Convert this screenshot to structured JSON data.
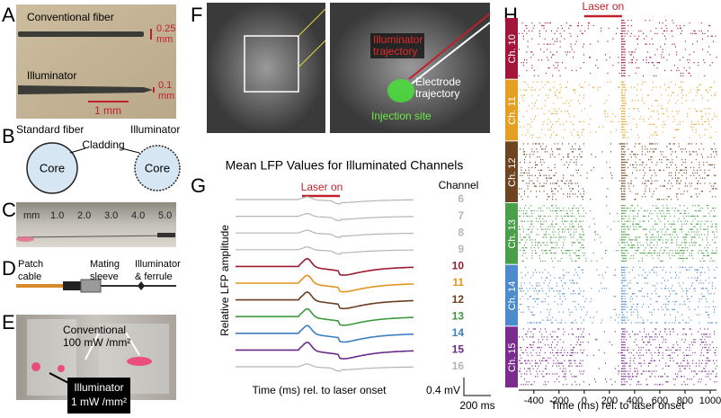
{
  "panel_a": {
    "label": "A",
    "fiber1": "Conventional fiber",
    "scale1": [
      "0.25",
      "mm"
    ],
    "fiber2": "Illuminator",
    "scale2": [
      "0.1",
      "mm"
    ],
    "scalebar": "1 mm"
  },
  "panel_b": {
    "label": "B",
    "left_title": "Standard fiber",
    "right_title": "Illuminator",
    "cladding": "Cladding",
    "core_left": "Core",
    "core_right": "Core"
  },
  "panel_c": {
    "label": "C",
    "ruler": [
      "mm",
      "1.0",
      "2.0",
      "3.0",
      "4.0",
      "5.0"
    ]
  },
  "panel_d": {
    "label": "D",
    "parts": [
      [
        "Patch",
        "cable"
      ],
      [
        "Mating",
        "sleeve"
      ],
      [
        "Illuminator",
        "& ferrule"
      ]
    ]
  },
  "panel_e": {
    "label": "E",
    "conventional": [
      "Conventional",
      "100 mW /mm²"
    ],
    "illuminator": [
      "Illuminator",
      "1 mW /mm²"
    ]
  },
  "panel_f": {
    "label": "F",
    "illuminator_trajectory": [
      "Illuminator",
      "trajectory"
    ],
    "electrode_trajectory": [
      "Electrode",
      "trajectory"
    ],
    "injection_site": "Injection site"
  },
  "panel_g": {
    "label": "G",
    "title": "Mean LFP Values for Illuminated Channels",
    "laser": "Laser on",
    "channel_header": "Channel",
    "channels": [
      {
        "name": "6",
        "color": "#b5b5b5"
      },
      {
        "name": "7",
        "color": "#b5b5b5"
      },
      {
        "name": "8",
        "color": "#b5b5b5"
      },
      {
        "name": "9",
        "color": "#b5b5b5"
      },
      {
        "name": "10",
        "color": "#9b1b30"
      },
      {
        "name": "11",
        "color": "#e0961c"
      },
      {
        "name": "12",
        "color": "#6b3e1f"
      },
      {
        "name": "13",
        "color": "#3d9a3d"
      },
      {
        "name": "14",
        "color": "#3a7fc0"
      },
      {
        "name": "15",
        "color": "#6a2a8a"
      },
      {
        "name": "16",
        "color": "#b5b5b5"
      }
    ],
    "y_label": "Relative LFP amplitude",
    "x_label": "Time (ms) rel. to laser onset",
    "scale_v": "0.4 mV",
    "scale_t": "200 ms"
  },
  "panel_h": {
    "label": "H",
    "laser": "Laser on",
    "channels": [
      {
        "name": "Ch. 10",
        "color": "#a3163a"
      },
      {
        "name": "Ch. 11",
        "color": "#e5a024"
      },
      {
        "name": "Ch. 12",
        "color": "#6e4421"
      },
      {
        "name": "Ch. 13",
        "color": "#4aa04a"
      },
      {
        "name": "Ch. 14",
        "color": "#4d8ccc"
      },
      {
        "name": "Ch. 15",
        "color": "#7a2d8e"
      }
    ],
    "xlim": [
      -520,
      1050
    ],
    "xticks": [
      -400,
      -200,
      0,
      200,
      400,
      600,
      800,
      1000
    ],
    "x_label": "Time (ms) rel. to laser onset"
  }
}
